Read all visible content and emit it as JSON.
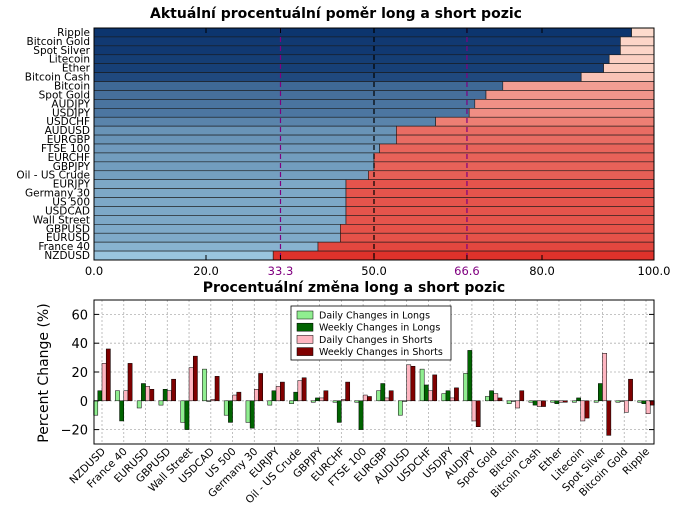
{
  "chart_data": [
    {
      "type": "bar",
      "orientation": "horizontal",
      "stacked": true,
      "title": "Aktuální procentuální poměr long a short pozic",
      "categories": [
        "Ripple",
        "Bitcoin Gold",
        "Spot Silver",
        "Litecoin",
        "Ether",
        "Bitcoin Cash",
        "Bitcoin",
        "Spot Gold",
        "AUDJPY",
        "USDJPY",
        "USDCHF",
        "AUDUSD",
        "EURGBP",
        "FTSE 100",
        "EURCHF",
        "GBPJPY",
        "Oil - US Crude",
        "EURJPY",
        "Germany 30",
        "US 500",
        "USDCAD",
        "Wall Street",
        "GBPUSD",
        "EURUSD",
        "France 40",
        "NZDUSD"
      ],
      "long_percent": [
        96,
        94,
        94,
        92,
        91,
        87,
        73,
        70,
        68,
        67,
        61,
        54,
        54,
        51,
        50,
        50,
        49,
        45,
        45,
        45,
        45,
        45,
        44,
        44,
        40,
        32
      ],
      "xlim": [
        0,
        100
      ],
      "xticks": [
        "0.0",
        "20.0",
        "33.3",
        "50.0",
        "66.6",
        "80.0",
        "100.0"
      ],
      "reference_lines": [
        33.3,
        50.0,
        66.6
      ],
      "colors": {
        "long_high": "#08306b",
        "long_low": "#9ecae1",
        "short_high": "#de2d26",
        "short_low": "#fee0d2"
      }
    },
    {
      "type": "bar",
      "title": "Procentuální změna long a short pozic",
      "ylabel": "Percent Change (%)",
      "ylim": [
        -30,
        70
      ],
      "yticks": [
        "−20",
        "0",
        "20",
        "40",
        "60"
      ],
      "grid": true,
      "legend_position": "top-center",
      "categories": [
        "NZDUSD",
        "France 40",
        "EURUSD",
        "GBPUSD",
        "Wall Street",
        "USDCAD",
        "US 500",
        "Germany 30",
        "EURJPY",
        "Oil - US Crude",
        "GBPJPY",
        "EURCHF",
        "FTSE 100",
        "EURGBP",
        "AUDUSD",
        "USDCHF",
        "USDJPY",
        "AUDJPY",
        "Spot Gold",
        "Bitcoin",
        "Bitcoin Cash",
        "Ether",
        "Litecoin",
        "Spot Silver",
        "Bitcoin Gold",
        "Ripple"
      ],
      "series": [
        {
          "name": "Daily Changes in Longs",
          "color": "#90ee90",
          "values": [
            -10,
            7,
            -5,
            -3,
            -15,
            22,
            -10,
            -15,
            -3,
            -2,
            -1,
            -1,
            -1,
            7,
            -10,
            22,
            5,
            19,
            3,
            -2,
            -1,
            -1,
            -1,
            -1,
            -1,
            -1
          ]
        },
        {
          "name": "Weekly Changes in Longs",
          "color": "#006400",
          "values": [
            7,
            -14,
            12,
            8,
            -20,
            0,
            -15,
            -19,
            7,
            6,
            2,
            -15,
            -20,
            12,
            0,
            11,
            7,
            35,
            7,
            0,
            -3,
            -2,
            2,
            12,
            0,
            -2
          ]
        },
        {
          "name": "Daily Changes in Shorts",
          "color": "#ffb6c1",
          "values": [
            26,
            7,
            10,
            7,
            23,
            1,
            4,
            8,
            10,
            14,
            2,
            1,
            4,
            2,
            25,
            7,
            2,
            -14,
            5,
            -5,
            -4,
            -1,
            -14,
            33,
            -8,
            -9
          ]
        },
        {
          "name": "Weekly Changes in Shorts",
          "color": "#800000",
          "values": [
            36,
            26,
            8,
            15,
            31,
            17,
            6,
            19,
            13,
            16,
            7,
            13,
            3,
            7,
            24,
            18,
            9,
            -18,
            2,
            7,
            -4,
            -1,
            -12,
            -24,
            15,
            -3
          ]
        }
      ]
    }
  ]
}
